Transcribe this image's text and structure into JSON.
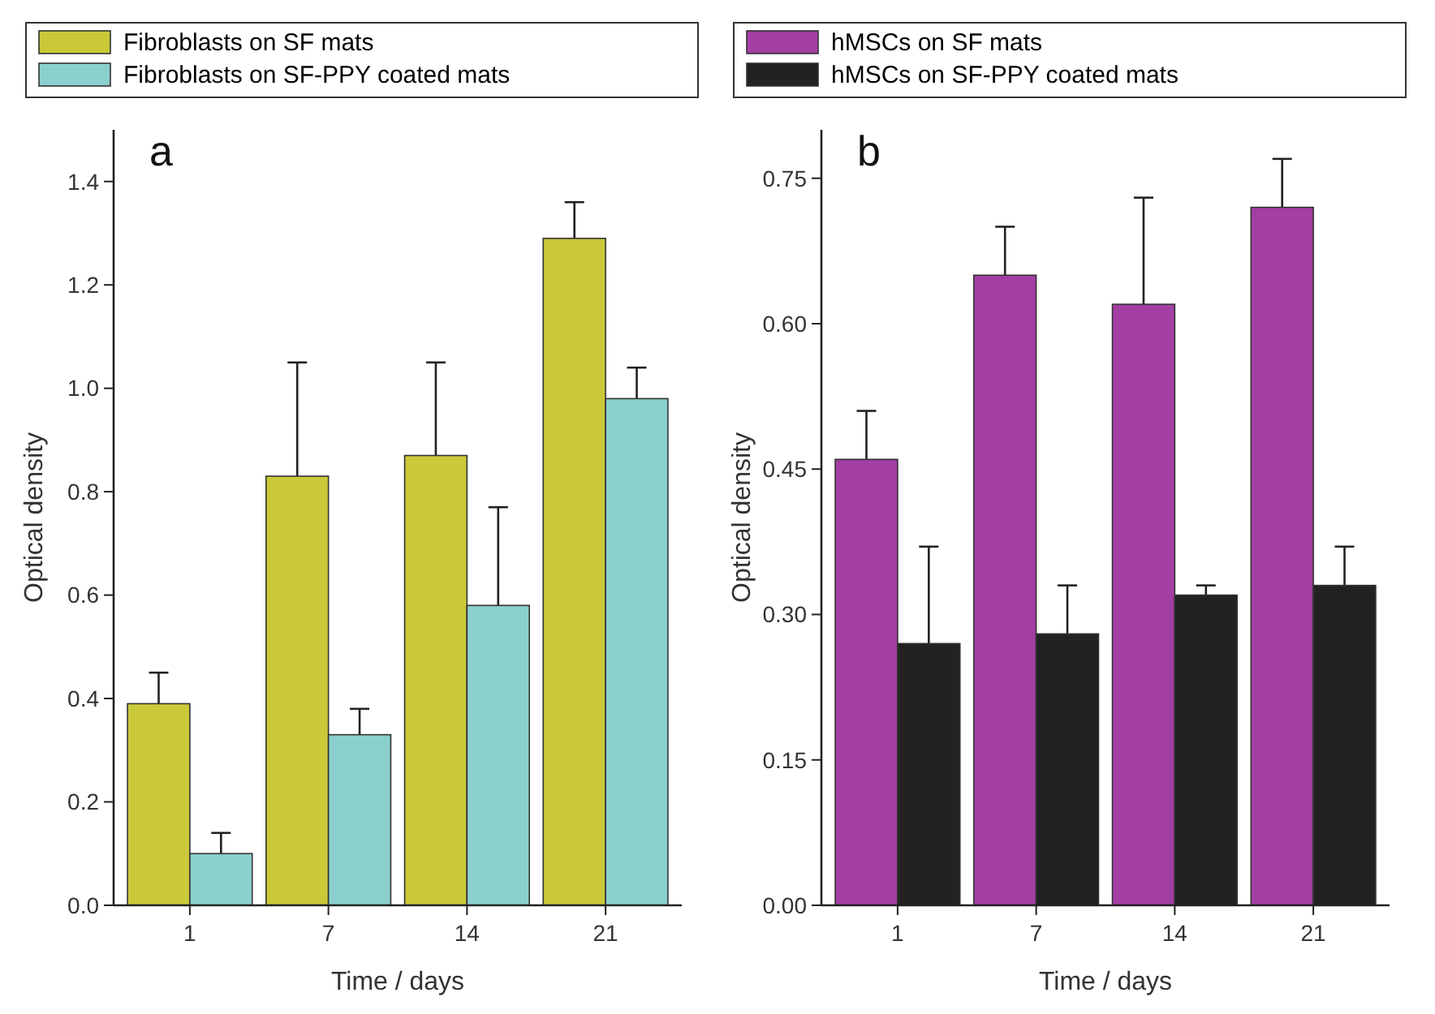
{
  "chart_data": [
    {
      "type": "bar",
      "xlabel": "Time / days",
      "ylabel": "Optical density",
      "annotations": [
        "a"
      ],
      "categories": [
        "1",
        "7",
        "14",
        "21"
      ],
      "legend": "top",
      "ylim": [
        0,
        1.5
      ],
      "yticks": [
        {
          "value": 0,
          "label": "0.0"
        },
        {
          "value": 0.2,
          "label": "0.2"
        },
        {
          "value": 0.4,
          "label": "0.4"
        },
        {
          "value": 0.6,
          "label": "0.6"
        },
        {
          "value": 0.8,
          "label": "0.8"
        },
        {
          "value": 1,
          "label": "1.0"
        },
        {
          "value": 1.2,
          "label": "1.2"
        },
        {
          "value": 1.4,
          "label": "1.4"
        }
      ],
      "series": [
        {
          "name": "Fibroblasts on SF mats",
          "color": "#c9c93a",
          "values": [
            0.39,
            0.83,
            0.87,
            1.29
          ],
          "errors": [
            [
              0.39,
              0.45
            ],
            [
              0.83,
              1.05
            ],
            [
              0.87,
              1.05
            ],
            [
              1.29,
              1.36
            ]
          ]
        },
        {
          "name": "Fibroblasts on SF-PPY coated mats",
          "color": "#8ccfcf",
          "values": [
            0.1,
            0.33,
            0.58,
            0.98
          ],
          "errors": [
            [
              0.1,
              0.14
            ],
            [
              0.33,
              0.38
            ],
            [
              0.58,
              0.77
            ],
            [
              0.98,
              1.04
            ]
          ]
        }
      ]
    },
    {
      "type": "bar",
      "xlabel": "Time / days",
      "ylabel": "Optical density",
      "annotations": [
        "b"
      ],
      "categories": [
        "1",
        "7",
        "14",
        "21"
      ],
      "legend": "top",
      "ylim": [
        0,
        0.8
      ],
      "yticks": [
        {
          "value": 0,
          "label": "0.00"
        },
        {
          "value": 0.15,
          "label": "0.15"
        },
        {
          "value": 0.3,
          "label": "0.30"
        },
        {
          "value": 0.45,
          "label": "0.45"
        },
        {
          "value": 0.6,
          "label": "0.60"
        },
        {
          "value": 0.75,
          "label": "0.75"
        }
      ],
      "series": [
        {
          "name": "hMSCs on SF mats",
          "color": "#a33ea3",
          "values": [
            0.46,
            0.65,
            0.62,
            0.72
          ],
          "errors": [
            [
              0.46,
              0.51
            ],
            [
              0.65,
              0.7
            ],
            [
              0.62,
              0.73
            ],
            [
              0.72,
              0.77
            ]
          ]
        },
        {
          "name": "hMSCs on SF-PPY coated mats",
          "color": "#222222",
          "values": [
            0.27,
            0.28,
            0.32,
            0.33
          ],
          "errors": [
            [
              0.27,
              0.37
            ],
            [
              0.28,
              0.33
            ],
            [
              0.32,
              0.33
            ],
            [
              0.33,
              0.37
            ]
          ]
        }
      ]
    }
  ]
}
